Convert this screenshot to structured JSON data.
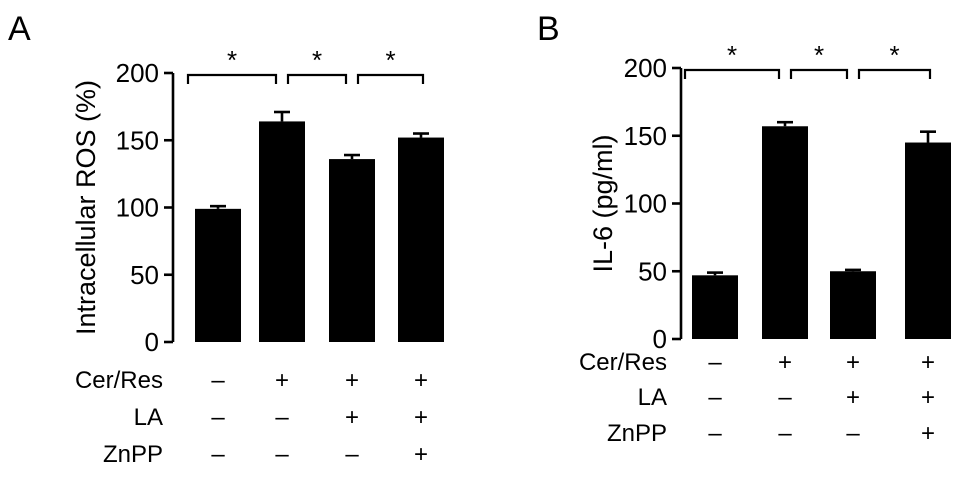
{
  "chart_data": [
    {
      "type": "bar",
      "panel": "A",
      "ylabel": "Intracellular ROS (%)",
      "ylim": [
        0,
        200
      ],
      "yticks": [
        0,
        50,
        100,
        150,
        200
      ],
      "values": [
        99,
        164,
        136,
        152
      ],
      "errors": [
        2,
        7,
        3,
        3
      ],
      "conditions": [
        {
          "name": "Cer/Res",
          "signs": [
            "–",
            "+",
            "+",
            "+"
          ]
        },
        {
          "name": "LA",
          "signs": [
            "–",
            "–",
            "+",
            "+"
          ]
        },
        {
          "name": "ZnPP",
          "signs": [
            "–",
            "–",
            "–",
            "+"
          ]
        }
      ],
      "significance": [
        {
          "from": 0,
          "to": 1,
          "label": "*"
        },
        {
          "from": 1,
          "to": 2,
          "label": "*"
        },
        {
          "from": 2,
          "to": 3,
          "label": "*"
        }
      ]
    },
    {
      "type": "bar",
      "panel": "B",
      "ylabel": "IL-6 (pg/ml)",
      "ylim": [
        0,
        200
      ],
      "yticks": [
        0,
        50,
        100,
        150,
        200
      ],
      "values": [
        47,
        157,
        50,
        145
      ],
      "errors": [
        2,
        3,
        1,
        8
      ],
      "conditions": [
        {
          "name": "Cer/Res",
          "signs": [
            "–",
            "+",
            "+",
            "+"
          ]
        },
        {
          "name": "LA",
          "signs": [
            "–",
            "–",
            "+",
            "+"
          ]
        },
        {
          "name": "ZnPP",
          "signs": [
            "–",
            "–",
            "–",
            "+"
          ]
        }
      ],
      "significance": [
        {
          "from": 0,
          "to": 1,
          "label": "*"
        },
        {
          "from": 1,
          "to": 2,
          "label": "*"
        },
        {
          "from": 2,
          "to": 3,
          "label": "*"
        }
      ]
    }
  ]
}
